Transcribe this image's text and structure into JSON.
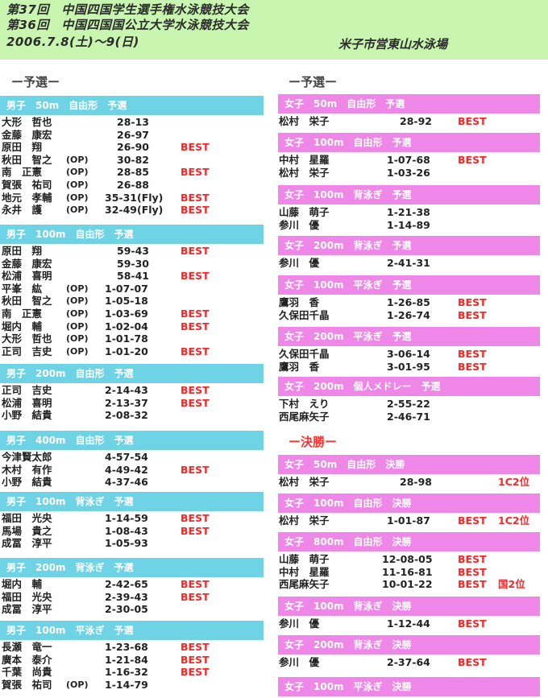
{
  "header": {
    "line1": "第37回　中国四国学生選手権水泳競技大会",
    "line2": "第36回　中国四国国公立大学水泳競技大会",
    "line3": "2006.7.8(土)～9(日)",
    "venue": "米子市営東山水泳場"
  },
  "left": {
    "section": "ー予選ー",
    "events": [
      {
        "title": "男子　50m　自由形　予選",
        "rows": [
          {
            "name": "大形　哲也",
            "op": "",
            "time": "28-13",
            "best": ""
          },
          {
            "name": "金藤　康宏",
            "op": "",
            "time": "26-97",
            "best": ""
          },
          {
            "name": "原田　翔",
            "op": "",
            "time": "26-90",
            "best": "BEST"
          },
          {
            "name": "秋田　智之",
            "op": "(OP)",
            "time": "30-82",
            "best": ""
          },
          {
            "name": "南　正憲",
            "op": "(OP)",
            "time": "28-85",
            "best": "BEST"
          },
          {
            "name": "賀張　祐司",
            "op": "(OP)",
            "time": "26-88",
            "best": ""
          },
          {
            "name": "地元　孝輔",
            "op": "(OP)",
            "time": "35-31(Fly)",
            "best": "BEST"
          },
          {
            "name": "永井　護",
            "op": "(OP)",
            "time": "32-49(Fly)",
            "best": "BEST"
          }
        ]
      },
      {
        "title": "男子　100m　自由形　予選",
        "rows": [
          {
            "name": "原田　翔",
            "op": "",
            "time": "59-43",
            "best": "BEST"
          },
          {
            "name": "金藤　康宏",
            "op": "",
            "time": "59-30",
            "best": ""
          },
          {
            "name": "松浦　喜明",
            "op": "",
            "time": "58-41",
            "best": "BEST"
          },
          {
            "name": "平峯　紘",
            "op": "(OP)",
            "time": "1-07-07",
            "best": ""
          },
          {
            "name": "秋田　智之",
            "op": "(OP)",
            "time": "1-05-18",
            "best": ""
          },
          {
            "name": "南　正憲",
            "op": "(OP)",
            "time": "1-03-69",
            "best": "BEST"
          },
          {
            "name": "堀内　輔",
            "op": "(OP)",
            "time": "1-02-04",
            "best": "BEST"
          },
          {
            "name": "大形　哲也",
            "op": "(OP)",
            "time": "1-01-78",
            "best": ""
          },
          {
            "name": "正司　吉史",
            "op": "(OP)",
            "time": "1-01-20",
            "best": "BEST"
          }
        ]
      },
      {
        "title": "男子　200m　自由形　予選",
        "rows": [
          {
            "name": "正司　吉史",
            "op": "",
            "time": "2-14-43",
            "best": "BEST"
          },
          {
            "name": "松浦　喜明",
            "op": "",
            "time": "2-13-37",
            "best": "BEST"
          },
          {
            "name": "小野　結貴",
            "op": "",
            "time": "2-08-32",
            "best": ""
          }
        ]
      },
      {
        "title": "男子　400m　自由形　予選",
        "rows": [
          {
            "name": "今津賢太郎",
            "op": "",
            "time": "4-57-54",
            "best": ""
          },
          {
            "name": "木村　有作",
            "op": "",
            "time": "4-49-42",
            "best": "BEST"
          },
          {
            "name": "小野　結貴",
            "op": "",
            "time": "4-37-46",
            "best": ""
          }
        ]
      },
      {
        "title": "男子　100m　背泳ぎ　予選",
        "rows": [
          {
            "name": "福田　光央",
            "op": "",
            "time": "1-14-59",
            "best": "BEST"
          },
          {
            "name": "馬場　貴之",
            "op": "",
            "time": "1-08-43",
            "best": "BEST"
          },
          {
            "name": "成冨　淳平",
            "op": "",
            "time": "1-05-93",
            "best": ""
          }
        ]
      },
      {
        "title": "男子　200m　背泳ぎ　予選",
        "rows": [
          {
            "name": "堀内　輔",
            "op": "",
            "time": "2-42-65",
            "best": "BEST"
          },
          {
            "name": "福田　光央",
            "op": "",
            "time": "2-39-43",
            "best": "BEST"
          },
          {
            "name": "成冨　淳平",
            "op": "",
            "time": "2-30-05",
            "best": ""
          }
        ]
      },
      {
        "title": "男子　100m　平泳ぎ　予選",
        "rows": [
          {
            "name": "長瀬　竜一",
            "op": "",
            "time": "1-23-68",
            "best": "BEST"
          },
          {
            "name": "廣本　泰介",
            "op": "",
            "time": "1-21-84",
            "best": "BEST"
          },
          {
            "name": "千葉　尚貴",
            "op": "",
            "time": "1-16-32",
            "best": "BEST"
          },
          {
            "name": "賀張　祐司",
            "op": "(OP)",
            "time": "1-14-79",
            "best": ""
          }
        ]
      }
    ]
  },
  "right": {
    "section": "ー予選ー",
    "events": [
      {
        "title": "女子　50m　自由形　予選",
        "rows": [
          {
            "name": "松村　栄子",
            "time": "28-92",
            "best": "BEST",
            "place": ""
          }
        ]
      },
      {
        "title": "女子　100m　自由形　予選",
        "rows": [
          {
            "name": "中村　星羅",
            "time": "1-07-68",
            "best": "BEST",
            "place": ""
          },
          {
            "name": "松村　栄子",
            "time": "1-03-26",
            "best": "",
            "place": ""
          }
        ]
      },
      {
        "title": "女子　100m　背泳ぎ　予選",
        "rows": [
          {
            "name": "山藤　萌子",
            "time": "1-21-38",
            "best": "",
            "place": ""
          },
          {
            "name": "参川　優",
            "time": "1-14-89",
            "best": "",
            "place": ""
          }
        ]
      },
      {
        "title": "女子　200m　背泳ぎ　予選",
        "rows": [
          {
            "name": "参川　優",
            "time": "2-41-31",
            "best": "",
            "place": ""
          }
        ]
      },
      {
        "title": "女子　100m　平泳ぎ　予選",
        "rows": [
          {
            "name": "鷹羽　香",
            "time": "1-26-85",
            "best": "BEST",
            "place": ""
          },
          {
            "name": "久保田千晶",
            "time": "1-26-74",
            "best": "BEST",
            "place": ""
          }
        ]
      },
      {
        "title": "女子　200m　平泳ぎ　予選",
        "rows": [
          {
            "name": "久保田千晶",
            "time": "3-06-14",
            "best": "BEST",
            "place": ""
          },
          {
            "name": "鷹羽　香",
            "time": "3-01-95",
            "best": "BEST",
            "place": ""
          }
        ]
      },
      {
        "title": "女子　200m　個人メドレー　予選",
        "rows": [
          {
            "name": "下村　えり",
            "time": "2-55-22",
            "best": "",
            "place": ""
          },
          {
            "name": "西尾麻矢子",
            "time": "2-46-71",
            "best": "",
            "place": ""
          }
        ]
      }
    ],
    "final_section": "ー決勝ー",
    "finals": [
      {
        "title": "女子　50m　自由形　決勝",
        "rows": [
          {
            "name": "松村　栄子",
            "time": "28-98",
            "best": "",
            "place": "1C2位"
          }
        ]
      },
      {
        "title": "女子　100m　自由形　決勝",
        "rows": [
          {
            "name": "松村　栄子",
            "time": "1-01-87",
            "best": "BEST",
            "place": "1C2位"
          }
        ]
      },
      {
        "title": "女子　800m　自由形　決勝",
        "rows": [
          {
            "name": "山藤　萌子",
            "time": "12-08-05",
            "best": "BEST",
            "place": ""
          },
          {
            "name": "中村　星羅",
            "time": "11-16-81",
            "best": "BEST",
            "place": ""
          },
          {
            "name": "西尾麻矢子",
            "time": "10-01-22",
            "best": "BEST",
            "place": "国2位"
          }
        ]
      },
      {
        "title": "女子　100m　背泳ぎ　決勝",
        "rows": [
          {
            "name": "参川　優",
            "time": "1-12-44",
            "best": "BEST",
            "place": ""
          }
        ]
      },
      {
        "title": "女子　200m　背泳ぎ　決勝",
        "rows": [
          {
            "name": "参川　優",
            "time": "2-37-64",
            "best": "BEST",
            "place": ""
          }
        ]
      },
      {
        "title": "女子　100m　平泳ぎ　決勝",
        "rows": []
      }
    ]
  }
}
